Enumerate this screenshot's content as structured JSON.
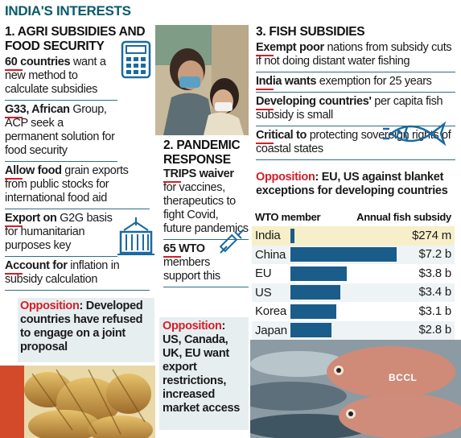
{
  "header": {
    "title": "INDIA'S INTERESTS"
  },
  "agri": {
    "heading": "1. AGRI SUBSIDIES AND FOOD SECURITY",
    "items": [
      {
        "bold": "60 countries",
        "text": " want a new method to calculate subsidies"
      },
      {
        "bold": "G33, African",
        "text": " Group, ACP seek a permanent solution for food security"
      },
      {
        "bold": "Allow food",
        "text": " grain exports from public stocks for international food aid"
      },
      {
        "bold": "Export on",
        "text": " G2G basis for humanitarian purposes key"
      },
      {
        "bold": "Account for",
        "text": " inflation in subsidy calculation"
      }
    ],
    "opposition_label": "Opposition",
    "opposition_text": ": Developed countries have refused to engage on a joint proposal"
  },
  "pandemic": {
    "heading": "2. PANDEMIC RESPONSE",
    "items": [
      {
        "bold": "TRIPS waiver",
        "text": " for vaccines, therapeutics to fight Covid, future pandemics"
      },
      {
        "bold": "65 WTO",
        "text": " members support this"
      }
    ],
    "opposition_label": "Opposition",
    "opposition_text": ": US, Canada, UK, EU want export restrictions, increased market access"
  },
  "fish": {
    "heading": "3. FISH SUBSIDIES",
    "items": [
      {
        "bold": "Exempt poor",
        "text": " nations from subsidy cuts if not doing distant water fishing"
      },
      {
        "bold": "India wants",
        "text": " exemption for 25 years"
      },
      {
        "bold": "Developing countries'",
        "text": " per capita fish subsidy is small"
      },
      {
        "bold": "Critical to",
        "text": " protecting sovereign rights of coastal states"
      }
    ],
    "opposition_label": "Opposition",
    "opposition_text": ": EU, US against blanket exceptions for developing countries"
  },
  "watermark": "BCCL",
  "chart_data": {
    "type": "bar",
    "title": "",
    "xlabel": "WTO member",
    "ylabel": "Annual fish subsidy",
    "categories": [
      "India",
      "China",
      "EU",
      "US",
      "Korea",
      "Japan"
    ],
    "values": [
      0.274,
      7.2,
      3.8,
      3.4,
      3.1,
      2.8
    ],
    "value_labels": [
      "$274 m",
      "$7.2 b",
      "$3.8 b",
      "$3.4 b",
      "$3.1 b",
      "$2.8 b"
    ],
    "unit": "billion USD",
    "bar_color": "#1a5c8a",
    "highlight": "India"
  },
  "colors": {
    "accent": "#0a5a6b",
    "red": "#d21f2a",
    "bar": "#1a5c8a"
  }
}
